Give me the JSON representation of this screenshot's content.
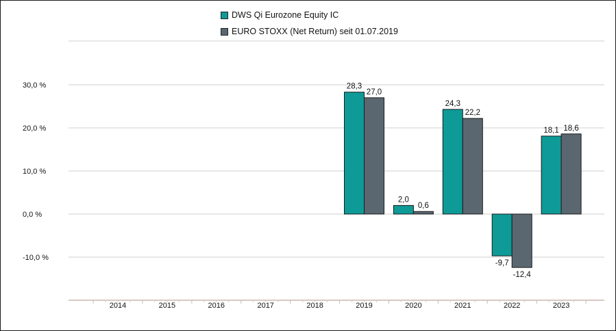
{
  "chart_data": {
    "type": "bar",
    "categories": [
      "2014",
      "2015",
      "2016",
      "2017",
      "2018",
      "2019",
      "2020",
      "2021",
      "2022",
      "2023"
    ],
    "series": [
      {
        "name": "DWS Qi Eurozone Equity IC",
        "color": "#0e9a97",
        "values": [
          null,
          null,
          null,
          null,
          null,
          28.3,
          2.0,
          24.3,
          -9.7,
          18.1
        ],
        "labels": [
          "",
          "",
          "",
          "",
          "",
          "28,3",
          "2,0",
          "24,3",
          "-9,7",
          "18,1"
        ]
      },
      {
        "name": "EURO STOXX (Net Return) seit 01.07.2019",
        "color": "#5b6770",
        "values": [
          null,
          null,
          null,
          null,
          null,
          27.0,
          0.6,
          22.2,
          -12.4,
          18.6
        ],
        "labels": [
          "",
          "",
          "",
          "",
          "",
          "27,0",
          "0,6",
          "22,2",
          "-12,4",
          "18,6"
        ]
      }
    ],
    "yticks": [
      30,
      20,
      10,
      0,
      -10
    ],
    "ytick_labels": [
      "30,0 %",
      "20,0 %",
      "10,0 %",
      "0,0 %",
      "-10,0 %"
    ],
    "ylim": [
      -20,
      40
    ],
    "grid": true,
    "legend_position": "top-center"
  }
}
